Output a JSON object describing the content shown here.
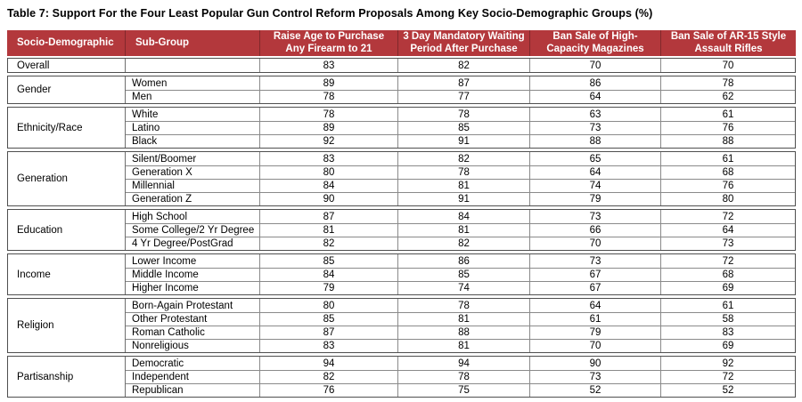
{
  "title": "Table 7: Support For the Four Least Popular Gun Control Reform Proposals Among Key Socio-Demographic Groups (%)",
  "colors": {
    "header_bg": "#B3383C",
    "header_text": "#FFFFFF",
    "border": "#4F4F4F"
  },
  "columns": [
    "Socio-Demographic",
    "Sub-Group",
    "Raise Age to Purchase Any Firearm to 21",
    "3 Day Mandatory Waiting Period After Purchase",
    "Ban Sale of High-Capacity Magazines",
    "Ban Sale of AR-15 Style Assault Rifles"
  ],
  "groups": [
    {
      "label": "Overall",
      "rows": [
        {
          "sub": "",
          "values": [
            "83",
            "82",
            "70",
            "70"
          ]
        }
      ]
    },
    {
      "label": "Gender",
      "rows": [
        {
          "sub": "Women",
          "values": [
            "89",
            "87",
            "86",
            "78"
          ]
        },
        {
          "sub": "Men",
          "values": [
            "78",
            "77",
            "64",
            "62"
          ]
        }
      ]
    },
    {
      "label": "Ethnicity/Race",
      "rows": [
        {
          "sub": "White",
          "values": [
            "78",
            "78",
            "63",
            "61"
          ]
        },
        {
          "sub": "Latino",
          "values": [
            "89",
            "85",
            "73",
            "76"
          ]
        },
        {
          "sub": "Black",
          "values": [
            "92",
            "91",
            "88",
            "88"
          ]
        }
      ]
    },
    {
      "label": "Generation",
      "rows": [
        {
          "sub": "Silent/Boomer",
          "values": [
            "83",
            "82",
            "65",
            "61"
          ]
        },
        {
          "sub": "Generation X",
          "values": [
            "80",
            "78",
            "64",
            "68"
          ]
        },
        {
          "sub": "Millennial",
          "values": [
            "84",
            "81",
            "74",
            "76"
          ]
        },
        {
          "sub": "Generation Z",
          "values": [
            "90",
            "91",
            "79",
            "80"
          ]
        }
      ]
    },
    {
      "label": "Education",
      "rows": [
        {
          "sub": "High School",
          "values": [
            "87",
            "84",
            "73",
            "72"
          ]
        },
        {
          "sub": "Some College/2 Yr Degree",
          "values": [
            "81",
            "81",
            "66",
            "64"
          ]
        },
        {
          "sub": "4 Yr Degree/PostGrad",
          "values": [
            "82",
            "82",
            "70",
            "73"
          ]
        }
      ]
    },
    {
      "label": "Income",
      "rows": [
        {
          "sub": "Lower Income",
          "values": [
            "85",
            "86",
            "73",
            "72"
          ]
        },
        {
          "sub": "Middle Income",
          "values": [
            "84",
            "85",
            "67",
            "68"
          ]
        },
        {
          "sub": "Higher Income",
          "values": [
            "79",
            "74",
            "67",
            "69"
          ]
        }
      ]
    },
    {
      "label": "Religion",
      "rows": [
        {
          "sub": "Born-Again Protestant",
          "values": [
            "80",
            "78",
            "64",
            "61"
          ]
        },
        {
          "sub": "Other Protestant",
          "values": [
            "85",
            "81",
            "61",
            "58"
          ]
        },
        {
          "sub": "Roman Catholic",
          "values": [
            "87",
            "88",
            "79",
            "83"
          ]
        },
        {
          "sub": "Nonreligious",
          "values": [
            "83",
            "81",
            "70",
            "69"
          ]
        }
      ]
    },
    {
      "label": "Partisanship",
      "rows": [
        {
          "sub": "Democratic",
          "values": [
            "94",
            "94",
            "90",
            "92"
          ]
        },
        {
          "sub": "Independent",
          "values": [
            "82",
            "78",
            "73",
            "72"
          ]
        },
        {
          "sub": "Republican",
          "values": [
            "76",
            "75",
            "52",
            "52"
          ]
        }
      ]
    }
  ],
  "chart_data": {
    "type": "table",
    "title": "Table 7: Support For the Four Least Popular Gun Control Reform Proposals Among Key Socio-Demographic Groups (%)",
    "columns": [
      "Socio-Demographic",
      "Sub-Group",
      "Raise Age to Purchase Any Firearm to 21",
      "3 Day Mandatory Waiting Period After Purchase",
      "Ban Sale of High-Capacity Magazines",
      "Ban Sale of AR-15 Style Assault Rifles"
    ],
    "rows": [
      [
        "Overall",
        "",
        83,
        82,
        70,
        70
      ],
      [
        "Gender",
        "Women",
        89,
        87,
        86,
        78
      ],
      [
        "Gender",
        "Men",
        78,
        77,
        64,
        62
      ],
      [
        "Ethnicity/Race",
        "White",
        78,
        78,
        63,
        61
      ],
      [
        "Ethnicity/Race",
        "Latino",
        89,
        85,
        73,
        76
      ],
      [
        "Ethnicity/Race",
        "Black",
        92,
        91,
        88,
        88
      ],
      [
        "Generation",
        "Silent/Boomer",
        83,
        82,
        65,
        61
      ],
      [
        "Generation",
        "Generation X",
        80,
        78,
        64,
        68
      ],
      [
        "Generation",
        "Millennial",
        84,
        81,
        74,
        76
      ],
      [
        "Generation",
        "Generation Z",
        90,
        91,
        79,
        80
      ],
      [
        "Education",
        "High School",
        87,
        84,
        73,
        72
      ],
      [
        "Education",
        "Some College/2 Yr Degree",
        81,
        81,
        66,
        64
      ],
      [
        "Education",
        "4 Yr Degree/PostGrad",
        82,
        82,
        70,
        73
      ],
      [
        "Income",
        "Lower Income",
        85,
        86,
        73,
        72
      ],
      [
        "Income",
        "Middle Income",
        84,
        85,
        67,
        68
      ],
      [
        "Income",
        "Higher Income",
        79,
        74,
        67,
        69
      ],
      [
        "Religion",
        "Born-Again Protestant",
        80,
        78,
        64,
        61
      ],
      [
        "Religion",
        "Other Protestant",
        85,
        81,
        61,
        58
      ],
      [
        "Religion",
        "Roman Catholic",
        87,
        88,
        79,
        83
      ],
      [
        "Religion",
        "Nonreligious",
        83,
        81,
        70,
        69
      ],
      [
        "Partisanship",
        "Democratic",
        94,
        94,
        90,
        92
      ],
      [
        "Partisanship",
        "Independent",
        82,
        78,
        73,
        72
      ],
      [
        "Partisanship",
        "Republican",
        76,
        75,
        52,
        52
      ]
    ]
  }
}
